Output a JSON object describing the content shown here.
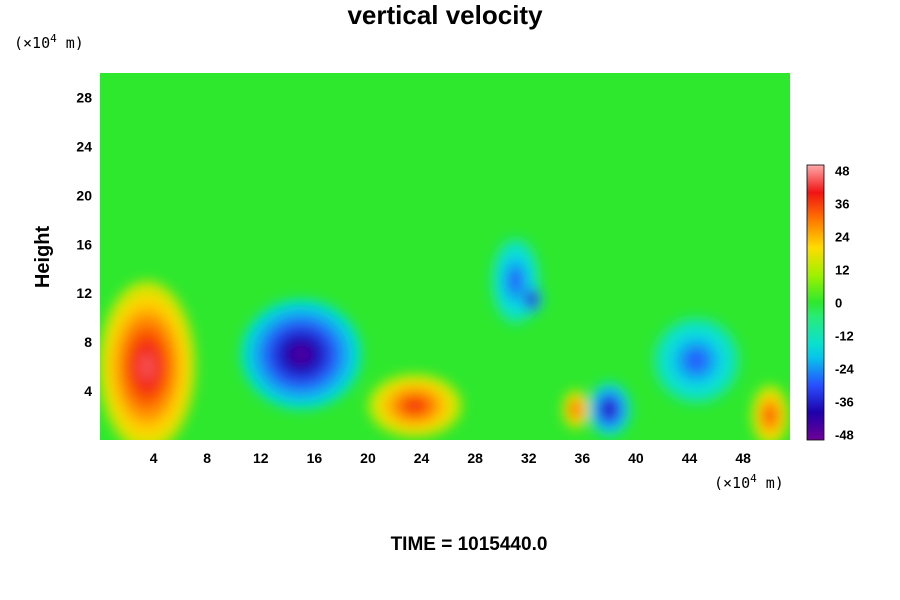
{
  "chart_data": {
    "type": "heatmap",
    "title": "vertical velocity",
    "y_unit": {
      "prefix": "(×10",
      "exp": "4",
      "suffix": " m)"
    },
    "x_unit": {
      "prefix": "(×10",
      "exp": "4",
      "suffix": " m)"
    },
    "ylabel": "Height",
    "footer": "TIME = 1015440.0",
    "xlim": [
      0,
      51.5
    ],
    "ylim": [
      0,
      30
    ],
    "xticks": [
      "4",
      "8",
      "12",
      "16",
      "20",
      "24",
      "28",
      "32",
      "36",
      "40",
      "44",
      "48"
    ],
    "yticks": [
      "4",
      "8",
      "12",
      "16",
      "20",
      "24",
      "28"
    ],
    "colorbar": {
      "range": [
        -50,
        50
      ],
      "ticks": [
        "48",
        "36",
        "24",
        "12",
        "0",
        "-12",
        "-24",
        "-36",
        "-48"
      ]
    },
    "features": [
      {
        "x": 3.5,
        "y": 6.0,
        "rx": 3.6,
        "ry": 7.0,
        "value": 44
      },
      {
        "x": 23.5,
        "y": 2.8,
        "rx": 3.5,
        "ry": 2.6,
        "value": 38
      },
      {
        "x": 15.0,
        "y": 7.0,
        "rx": 4.5,
        "ry": 4.5,
        "value": -46
      },
      {
        "x": 31.0,
        "y": 13.0,
        "rx": 1.8,
        "ry": 3.5,
        "value": -30
      },
      {
        "x": 32.2,
        "y": 11.5,
        "rx": 0.8,
        "ry": 1.2,
        "value": -46
      },
      {
        "x": 38.0,
        "y": 2.5,
        "rx": 1.6,
        "ry": 2.2,
        "value": -42
      },
      {
        "x": 44.5,
        "y": 6.5,
        "rx": 3.2,
        "ry": 3.5,
        "value": -30
      },
      {
        "x": 35.5,
        "y": 2.5,
        "rx": 1.0,
        "ry": 1.6,
        "value": 36
      },
      {
        "x": 50.0,
        "y": 2.0,
        "rx": 1.4,
        "ry": 2.5,
        "value": 36
      }
    ]
  }
}
